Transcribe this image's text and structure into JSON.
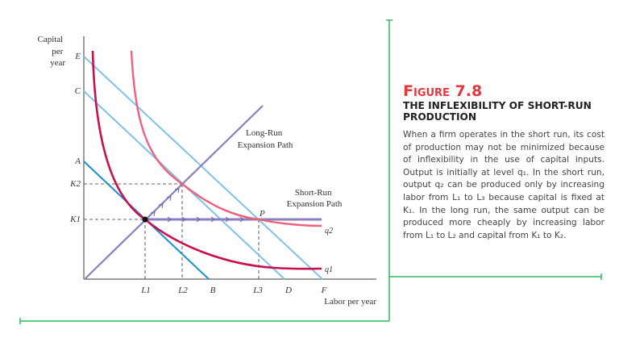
{
  "figure": {
    "label": "Figure 7.8",
    "title": "THE INFLEXIBILITY OF SHORT-RUN PRODUCTION",
    "caption": "When a firm operates in the short run, its cost of production may not be minimized because of inflexibility in the use of capital inputs. Output is initially at level q₁. In the short run, output q₂ can be produced only by increasing labor from L₁ to L₃ because capital is fixed at K₁. In the long run, the same output can be produced more cheaply by increasing labor from L₁ to L₂ and capital from K₁ to K₂."
  },
  "diagram": {
    "y_axis_label": [
      "Capital",
      "per",
      "year"
    ],
    "x_axis_label": "Labor per year",
    "y_ticks": [
      "E",
      "C",
      "A",
      "K2",
      "K1"
    ],
    "x_ticks": [
      "L1",
      "L2",
      "B",
      "L3",
      "D",
      "F"
    ],
    "long_run_label": [
      "Long-Run",
      "Expansion Path"
    ],
    "short_run_label": [
      "Short-Run",
      "Expansion Path"
    ],
    "point_label": "P",
    "curve_labels": [
      "q2",
      "q1"
    ],
    "colors": {
      "isocost_light": "#7ec3ea",
      "isocost_dark": "#1a8fd0",
      "q1": "#c8104f",
      "q2": "#f0607a",
      "expansion": "#8a7fc0",
      "frame": "#2dbb5f"
    }
  }
}
